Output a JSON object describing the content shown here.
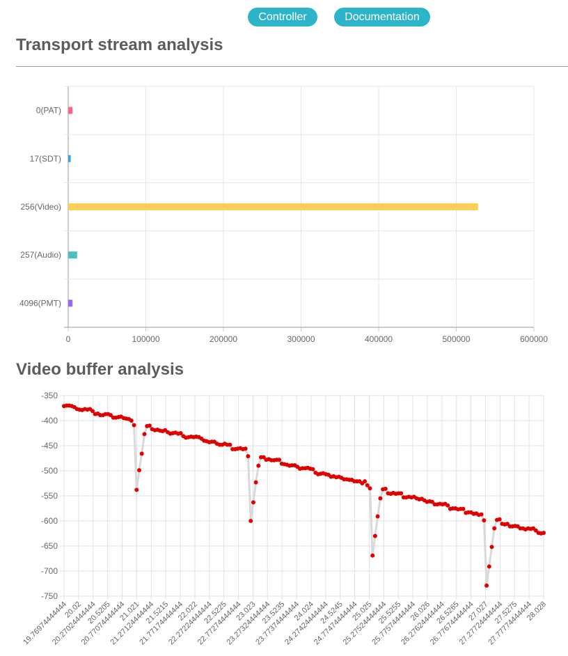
{
  "nav": {
    "controller_label": "Controller",
    "documentation_label": "Documentation"
  },
  "sections": {
    "transport_title": "Transport stream analysis",
    "buffer_title": "Video buffer analysis"
  },
  "colors": {
    "accent": "#2eb4c9",
    "buffer_point": "#e00000",
    "buffer_line": "#d9d9d9"
  },
  "chart_data": [
    {
      "type": "bar",
      "orientation": "horizontal",
      "title": "",
      "categories": [
        "0(PAT)",
        "17(SDT)",
        "256(Video)",
        "257(Audio)",
        "4096(PMT)"
      ],
      "values": [
        5500,
        3200,
        528000,
        11500,
        5500
      ],
      "colors": [
        "#ff6384",
        "#36a2eb",
        "#ffce56",
        "#4bc0c0",
        "#9966ff"
      ],
      "xlim": [
        0,
        600000
      ],
      "x_ticks": [
        0,
        100000,
        200000,
        300000,
        400000,
        500000,
        600000
      ],
      "grid": true,
      "legend": "none"
    },
    {
      "type": "line",
      "title": "",
      "ylim": [
        -750,
        -350
      ],
      "y_ticks": [
        -350,
        -400,
        -450,
        -500,
        -550,
        -600,
        -650,
        -700,
        -750
      ],
      "x_tick_labels": [
        "19.76974444444",
        "20.02",
        "20.27024444444",
        "20.5205",
        "20.77074444444",
        "21.021",
        "21.27124444444",
        "21.5215",
        "21.77174444444",
        "22.022",
        "22.27224444444",
        "22.5225",
        "22.77274444444",
        "23.023",
        "23.27324444444",
        "23.5235",
        "23.77374444444",
        "24.024",
        "24.27424444444",
        "24.5245",
        "24.77474444444",
        "25.025",
        "25.27524444444",
        "25.5255",
        "25.77574444444",
        "26.026",
        "26.27624444444",
        "26.5265",
        "26.77674444444",
        "27.027",
        "27.27724444444",
        "27.5275",
        "27.77774444444",
        "28.028"
      ],
      "grid": true,
      "legend": "none",
      "series": [
        {
          "x_start": 19.7697,
          "x_step": 0.04170833,
          "values": [
            -371,
            -370,
            -370,
            -371,
            -373,
            -377,
            -378,
            -379,
            -377,
            -378,
            -377,
            -381,
            -387,
            -386,
            -389,
            -389,
            -387,
            -387,
            -389,
            -394,
            -394,
            -393,
            -392,
            -395,
            -396,
            -397,
            -400,
            -409,
            -538,
            -499,
            -466,
            -427,
            -411,
            -410,
            -417,
            -419,
            -418,
            -420,
            -421,
            -419,
            -423,
            -426,
            -425,
            -424,
            -426,
            -425,
            -431,
            -434,
            -433,
            -432,
            -433,
            -432,
            -433,
            -436,
            -440,
            -441,
            -443,
            -442,
            -442,
            -446,
            -448,
            -448,
            -446,
            -448,
            -448,
            -457,
            -457,
            -456,
            -455,
            -457,
            -456,
            -471,
            -600,
            -563,
            -523,
            -490,
            -473,
            -473,
            -478,
            -477,
            -479,
            -479,
            -478,
            -478,
            -486,
            -487,
            -488,
            -490,
            -489,
            -489,
            -492,
            -496,
            -495,
            -495,
            -494,
            -496,
            -497,
            -504,
            -507,
            -506,
            -505,
            -507,
            -508,
            -512,
            -511,
            -513,
            -512,
            -514,
            -517,
            -517,
            -518,
            -518,
            -521,
            -521,
            -521,
            -525,
            -521,
            -529,
            -535,
            -669,
            -630,
            -591,
            -555,
            -537,
            -536,
            -545,
            -546,
            -544,
            -546,
            -545,
            -545,
            -553,
            -553,
            -552,
            -553,
            -552,
            -555,
            -557,
            -556,
            -559,
            -562,
            -561,
            -562,
            -567,
            -567,
            -566,
            -567,
            -566,
            -569,
            -576,
            -575,
            -575,
            -577,
            -576,
            -576,
            -584,
            -583,
            -583,
            -586,
            -585,
            -588,
            -587,
            -599,
            -729,
            -691,
            -652,
            -615,
            -598,
            -597,
            -606,
            -607,
            -606,
            -611,
            -611,
            -610,
            -611,
            -615,
            -615,
            -617,
            -615,
            -616,
            -615,
            -619,
            -624,
            -625,
            -624
          ]
        }
      ]
    }
  ]
}
